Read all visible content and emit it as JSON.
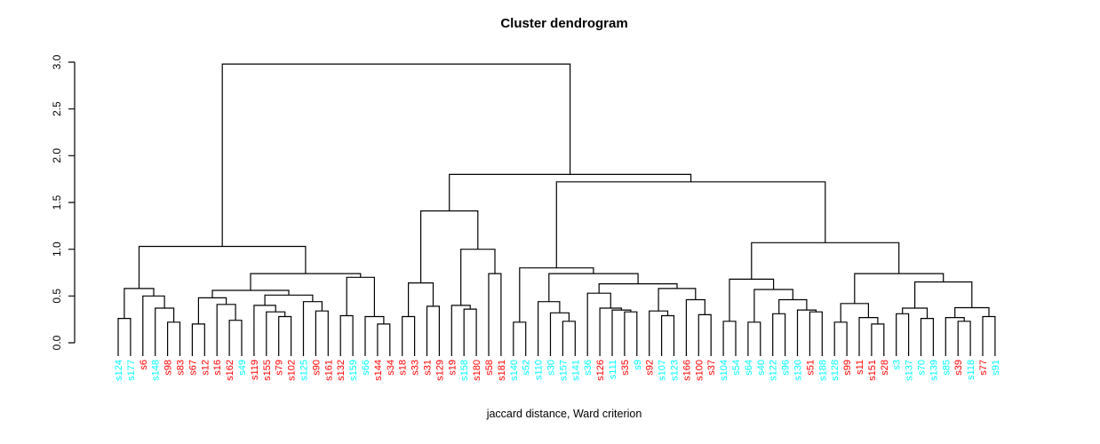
{
  "title": "Cluster dendrogram",
  "xlabel": "jaccard distance, Ward criterion",
  "chart_data": {
    "type": "dendrogram",
    "title": "Cluster dendrogram",
    "xlabel": "jaccard distance, Ward criterion",
    "ylim": [
      0,
      3
    ],
    "y_ticks": [
      "0.0",
      "0.5",
      "1.0",
      "1.5",
      "2.0",
      "2.5",
      "3.0"
    ],
    "grid": false,
    "line_color": "#000000",
    "leaf_colors": {
      "red": "#FF0000",
      "cyan": "#00FFFF"
    },
    "leaves": [
      {
        "label": "s124",
        "color": "cyan"
      },
      {
        "label": "s177",
        "color": "cyan"
      },
      {
        "label": "s6",
        "color": "red"
      },
      {
        "label": "s148",
        "color": "cyan"
      },
      {
        "label": "s98",
        "color": "red"
      },
      {
        "label": "s83",
        "color": "red"
      },
      {
        "label": "s67",
        "color": "red"
      },
      {
        "label": "s12",
        "color": "red"
      },
      {
        "label": "s16",
        "color": "red"
      },
      {
        "label": "s162",
        "color": "red"
      },
      {
        "label": "s49",
        "color": "cyan"
      },
      {
        "label": "s119",
        "color": "red"
      },
      {
        "label": "s155",
        "color": "red"
      },
      {
        "label": "s79",
        "color": "red"
      },
      {
        "label": "s102",
        "color": "red"
      },
      {
        "label": "s125",
        "color": "cyan"
      },
      {
        "label": "s90",
        "color": "red"
      },
      {
        "label": "s161",
        "color": "red"
      },
      {
        "label": "s132",
        "color": "red"
      },
      {
        "label": "s159",
        "color": "cyan"
      },
      {
        "label": "s66",
        "color": "cyan"
      },
      {
        "label": "s144",
        "color": "red"
      },
      {
        "label": "s34",
        "color": "red"
      },
      {
        "label": "s18",
        "color": "red"
      },
      {
        "label": "s33",
        "color": "red"
      },
      {
        "label": "s31",
        "color": "red"
      },
      {
        "label": "s129",
        "color": "red"
      },
      {
        "label": "s19",
        "color": "red"
      },
      {
        "label": "s158",
        "color": "cyan"
      },
      {
        "label": "s180",
        "color": "red"
      },
      {
        "label": "s58",
        "color": "red"
      },
      {
        "label": "s181",
        "color": "red"
      },
      {
        "label": "s140",
        "color": "cyan"
      },
      {
        "label": "s52",
        "color": "cyan"
      },
      {
        "label": "s110",
        "color": "cyan"
      },
      {
        "label": "s30",
        "color": "cyan"
      },
      {
        "label": "s157",
        "color": "cyan"
      },
      {
        "label": "s141",
        "color": "cyan"
      },
      {
        "label": "s36",
        "color": "cyan"
      },
      {
        "label": "s126",
        "color": "red"
      },
      {
        "label": "s111",
        "color": "cyan"
      },
      {
        "label": "s35",
        "color": "red"
      },
      {
        "label": "s9",
        "color": "cyan"
      },
      {
        "label": "s92",
        "color": "red"
      },
      {
        "label": "s107",
        "color": "cyan"
      },
      {
        "label": "s123",
        "color": "cyan"
      },
      {
        "label": "s166",
        "color": "red"
      },
      {
        "label": "s100",
        "color": "red"
      },
      {
        "label": "s37",
        "color": "red"
      },
      {
        "label": "s104",
        "color": "cyan"
      },
      {
        "label": "s54",
        "color": "cyan"
      },
      {
        "label": "s64",
        "color": "cyan"
      },
      {
        "label": "s40",
        "color": "cyan"
      },
      {
        "label": "s122",
        "color": "cyan"
      },
      {
        "label": "s96",
        "color": "cyan"
      },
      {
        "label": "s130",
        "color": "cyan"
      },
      {
        "label": "s51",
        "color": "red"
      },
      {
        "label": "s188",
        "color": "cyan"
      },
      {
        "label": "s128",
        "color": "cyan"
      },
      {
        "label": "s99",
        "color": "red"
      },
      {
        "label": "s11",
        "color": "red"
      },
      {
        "label": "s151",
        "color": "red"
      },
      {
        "label": "s28",
        "color": "red"
      },
      {
        "label": "s3",
        "color": "cyan"
      },
      {
        "label": "s137",
        "color": "cyan"
      },
      {
        "label": "s70",
        "color": "cyan"
      },
      {
        "label": "s139",
        "color": "cyan"
      },
      {
        "label": "s85",
        "color": "cyan"
      },
      {
        "label": "s39",
        "color": "red"
      },
      {
        "label": "s118",
        "color": "cyan"
      },
      {
        "label": "s77",
        "color": "red"
      },
      {
        "label": "s91",
        "color": "cyan"
      }
    ],
    "tree": {
      "h": 2.98,
      "c": [
        {
          "h": 1.03,
          "c": [
            {
              "h": 0.58,
              "c": [
                {
                  "h": 0.26,
                  "c": [
                    "s124",
                    "s177"
                  ]
                },
                {
                  "h": 0.5,
                  "c": [
                    "s6",
                    {
                      "h": 0.37,
                      "c": [
                        "s148",
                        {
                          "h": 0.22,
                          "c": [
                            "s98",
                            "s83"
                          ]
                        }
                      ]
                    }
                  ]
                }
              ]
            },
            {
              "h": 0.74,
              "c": [
                {
                  "h": 0.56,
                  "c": [
                    {
                      "h": 0.48,
                      "c": [
                        {
                          "h": 0.2,
                          "c": [
                            "s67",
                            "s12"
                          ]
                        },
                        {
                          "h": 0.41,
                          "c": [
                            "s16",
                            {
                              "h": 0.24,
                              "c": [
                                "s162",
                                "s49"
                              ]
                            }
                          ]
                        }
                      ]
                    },
                    {
                      "h": 0.51,
                      "c": [
                        {
                          "h": 0.4,
                          "c": [
                            "s119",
                            {
                              "h": 0.33,
                              "c": [
                                "s155",
                                {
                                  "h": 0.28,
                                  "c": [
                                    "s79",
                                    "s102"
                                  ]
                                }
                              ]
                            }
                          ]
                        },
                        {
                          "h": 0.44,
                          "c": [
                            "s125",
                            {
                              "h": 0.34,
                              "c": [
                                "s90",
                                "s161"
                              ]
                            }
                          ]
                        }
                      ]
                    }
                  ]
                },
                {
                  "h": 0.7,
                  "c": [
                    {
                      "h": 0.29,
                      "c": [
                        "s132",
                        "s159"
                      ]
                    },
                    {
                      "h": 0.28,
                      "c": [
                        "s66",
                        {
                          "h": 0.2,
                          "c": [
                            "s144",
                            "s34"
                          ]
                        }
                      ]
                    }
                  ]
                }
              ]
            }
          ]
        },
        {
          "h": 1.8,
          "c": [
            {
              "h": 1.41,
              "c": [
                {
                  "h": 0.64,
                  "c": [
                    {
                      "h": 0.28,
                      "c": [
                        "s18",
                        "s33"
                      ]
                    },
                    {
                      "h": 0.39,
                      "c": [
                        "s31",
                        "s129"
                      ]
                    }
                  ]
                },
                {
                  "h": 1.0,
                  "c": [
                    {
                      "h": 0.4,
                      "c": [
                        "s19",
                        {
                          "h": 0.36,
                          "c": [
                            "s158",
                            "s180"
                          ]
                        }
                      ]
                    },
                    {
                      "h": 0.74,
                      "c": [
                        "s58",
                        "s181"
                      ]
                    }
                  ]
                }
              ]
            },
            {
              "h": 1.72,
              "c": [
                {
                  "h": 0.8,
                  "c": [
                    {
                      "h": 0.22,
                      "c": [
                        "s140",
                        "s52"
                      ]
                    },
                    {
                      "h": 0.74,
                      "c": [
                        {
                          "h": 0.44,
                          "c": [
                            "s110",
                            {
                              "h": 0.32,
                              "c": [
                                "s30",
                                {
                                  "h": 0.23,
                                  "c": [
                                    "s157",
                                    "s141"
                                  ]
                                }
                              ]
                            }
                          ]
                        },
                        {
                          "h": 0.63,
                          "c": [
                            {
                              "h": 0.53,
                              "c": [
                                "s36",
                                {
                                  "h": 0.37,
                                  "c": [
                                    "s126",
                                    {
                                      "h": 0.35,
                                      "c": [
                                        "s111",
                                        {
                                          "h": 0.33,
                                          "c": [
                                            "s35",
                                            "s9"
                                          ]
                                        }
                                      ]
                                    }
                                  ]
                                }
                              ]
                            },
                            {
                              "h": 0.58,
                              "c": [
                                {
                                  "h": 0.34,
                                  "c": [
                                    "s92",
                                    {
                                      "h": 0.29,
                                      "c": [
                                        "s107",
                                        "s123"
                                      ]
                                    }
                                  ]
                                },
                                {
                                  "h": 0.46,
                                  "c": [
                                    "s166",
                                    {
                                      "h": 0.3,
                                      "c": [
                                        "s100",
                                        "s37"
                                      ]
                                    }
                                  ]
                                }
                              ]
                            }
                          ]
                        }
                      ]
                    }
                  ]
                },
                {
                  "h": 1.07,
                  "c": [
                    {
                      "h": 0.68,
                      "c": [
                        {
                          "h": 0.23,
                          "c": [
                            "s104",
                            "s54"
                          ]
                        },
                        {
                          "h": 0.57,
                          "c": [
                            {
                              "h": 0.22,
                              "c": [
                                "s64",
                                "s40"
                              ]
                            },
                            {
                              "h": 0.46,
                              "c": [
                                {
                                  "h": 0.31,
                                  "c": [
                                    "s122",
                                    "s96"
                                  ]
                                },
                                {
                                  "h": 0.35,
                                  "c": [
                                    "s130",
                                    {
                                      "h": 0.33,
                                      "c": [
                                        "s51",
                                        "s188"
                                      ]
                                    }
                                  ]
                                }
                              ]
                            }
                          ]
                        }
                      ]
                    },
                    {
                      "h": 0.74,
                      "c": [
                        {
                          "h": 0.42,
                          "c": [
                            {
                              "h": 0.22,
                              "c": [
                                "s128",
                                "s99"
                              ]
                            },
                            {
                              "h": 0.27,
                              "c": [
                                "s11",
                                {
                                  "h": 0.2,
                                  "c": [
                                    "s151",
                                    "s28"
                                  ]
                                }
                              ]
                            }
                          ]
                        },
                        {
                          "h": 0.65,
                          "c": [
                            {
                              "h": 0.37,
                              "c": [
                                {
                                  "h": 0.31,
                                  "c": [
                                    "s3",
                                    "s137"
                                  ]
                                },
                                {
                                  "h": 0.26,
                                  "c": [
                                    "s70",
                                    "s139"
                                  ]
                                }
                              ]
                            },
                            {
                              "h": 0.375,
                              "c": [
                                {
                                  "h": 0.27,
                                  "c": [
                                    "s85",
                                    {
                                      "h": 0.23,
                                      "c": [
                                        "s39",
                                        "s118"
                                      ]
                                    }
                                  ]
                                },
                                {
                                  "h": 0.28,
                                  "c": [
                                    "s77",
                                    "s91"
                                  ]
                                }
                              ]
                            }
                          ]
                        }
                      ]
                    }
                  ]
                }
              ]
            }
          ]
        }
      ]
    }
  }
}
